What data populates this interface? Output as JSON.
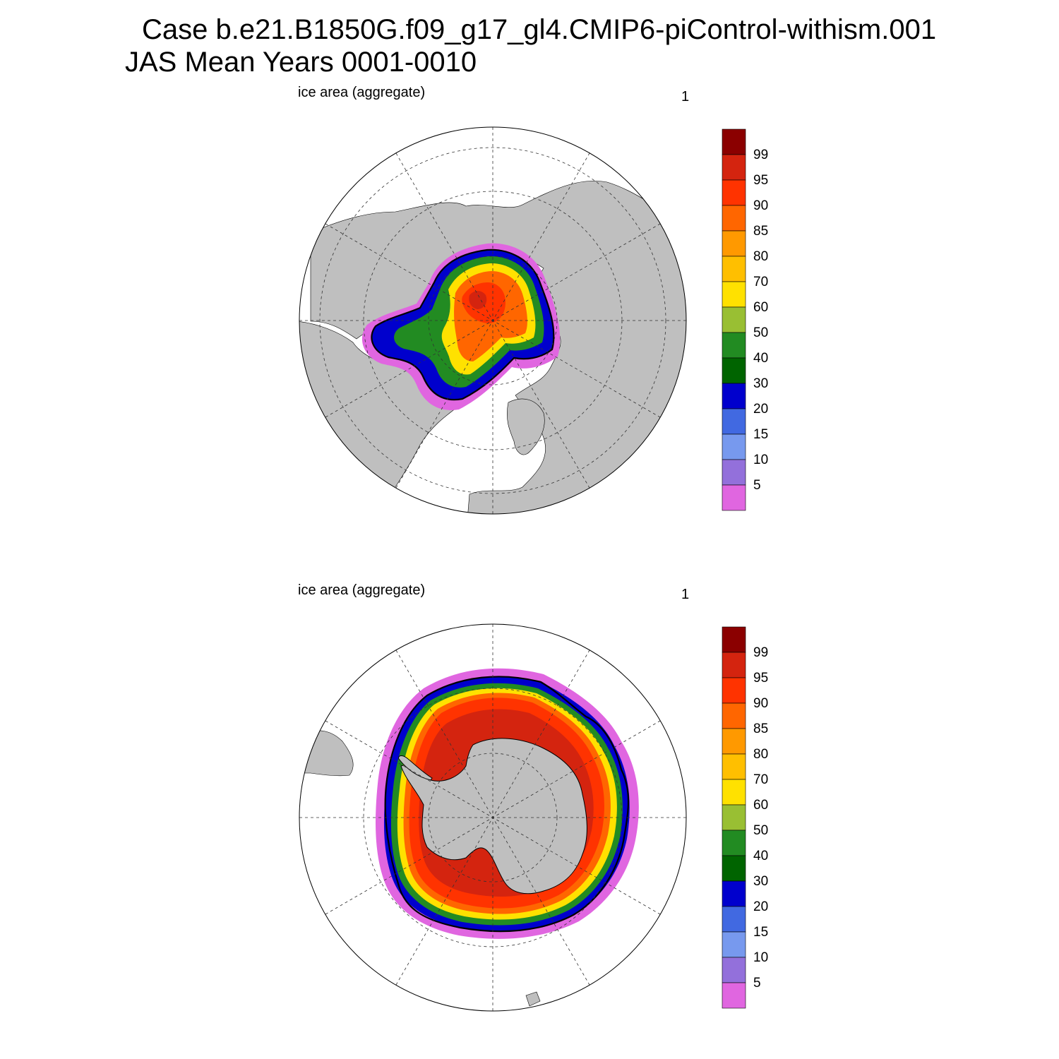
{
  "title": {
    "line1": "Case b.e21.B1850G.f09_g17_gl4.CMIP6-piControl-withism.001",
    "line2": "JAS Mean   Years 0001-0010"
  },
  "panels": [
    {
      "id": "north",
      "label": "ice area  (aggregate)",
      "number": "1",
      "hemisphere": "Arctic"
    },
    {
      "id": "south",
      "label": "ice area  (aggregate)",
      "number": "1",
      "hemisphere": "Antarctic"
    }
  ],
  "colorbar": {
    "levels": [
      "99",
      "95",
      "90",
      "85",
      "80",
      "70",
      "60",
      "50",
      "40",
      "30",
      "20",
      "15",
      "10",
      "5"
    ],
    "colors_top_to_bottom": [
      "#8b0000",
      "#d4240f",
      "#ff3300",
      "#ff6600",
      "#ff9900",
      "#ffbf00",
      "#ffe100",
      "#99bf33",
      "#228b22",
      "#006400",
      "#0000cd",
      "#4169e1",
      "#7799ee",
      "#9370db",
      "#e066e0"
    ]
  },
  "colors": {
    "land": "#bfbfbf",
    "ocean": "#ffffff",
    "grid": "#333333",
    "ice_edge": "#000000"
  }
}
